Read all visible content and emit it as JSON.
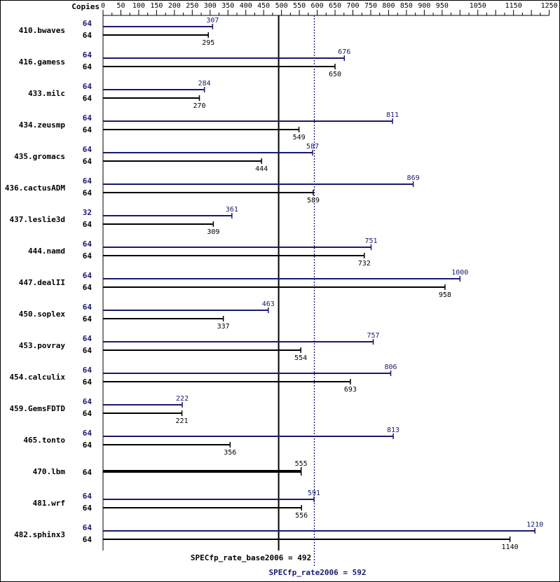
{
  "chart_data": {
    "type": "bar",
    "orientation": "horizontal",
    "copies_header": "Copies",
    "ticks": [
      0,
      50,
      100,
      150,
      200,
      250,
      300,
      350,
      400,
      450,
      500,
      550,
      600,
      650,
      700,
      750,
      800,
      850,
      900,
      950,
      1050,
      1150,
      1250
    ],
    "xlim": [
      0,
      1250
    ],
    "colors": {
      "base": "#000000",
      "peak": "#191970"
    },
    "categories": [
      "410.bwaves",
      "416.gamess",
      "433.milc",
      "434.zeusmp",
      "435.gromacs",
      "436.cactusADM",
      "437.leslie3d",
      "444.namd",
      "447.dealII",
      "450.soplex",
      "453.povray",
      "454.calculix",
      "459.GemsFDTD",
      "465.tonto",
      "470.lbm",
      "481.wrf",
      "482.sphinx3"
    ],
    "series": [
      {
        "name": "peak",
        "copies": [
          "64",
          "64",
          "64",
          "64",
          "64",
          "64",
          "32",
          "64",
          "64",
          "64",
          "64",
          "64",
          "64",
          "64",
          "",
          "64",
          "64"
        ],
        "values": [
          307,
          676,
          284,
          811,
          587,
          869,
          361,
          751,
          1000,
          463,
          757,
          806,
          222,
          813,
          null,
          591,
          1210
        ],
        "labels": [
          "307",
          "676",
          "284",
          "811",
          "587",
          "869",
          "361",
          "751",
          "1000",
          "463",
          "757",
          "806",
          "222",
          "813",
          "",
          "591",
          "1210"
        ]
      },
      {
        "name": "base",
        "copies": [
          "64",
          "64",
          "64",
          "64",
          "64",
          "64",
          "64",
          "64",
          "64",
          "64",
          "64",
          "64",
          "64",
          "64",
          "64",
          "64",
          "64"
        ],
        "values": [
          295,
          650,
          270,
          549,
          444,
          589,
          309,
          732,
          958,
          337,
          554,
          693,
          221,
          356,
          555,
          556,
          1140
        ],
        "labels": [
          "295",
          "650",
          "270",
          "549",
          "444",
          "589",
          "309",
          "732",
          "958",
          "337",
          "554",
          "693",
          "221",
          "356",
          "555",
          "556",
          "1140"
        ]
      }
    ],
    "summary": {
      "base_label": "SPECfp_rate_base2006 = 492",
      "base_value": 492,
      "peak_label": "SPECfp_rate2006 = 592",
      "peak_value": 592
    }
  }
}
